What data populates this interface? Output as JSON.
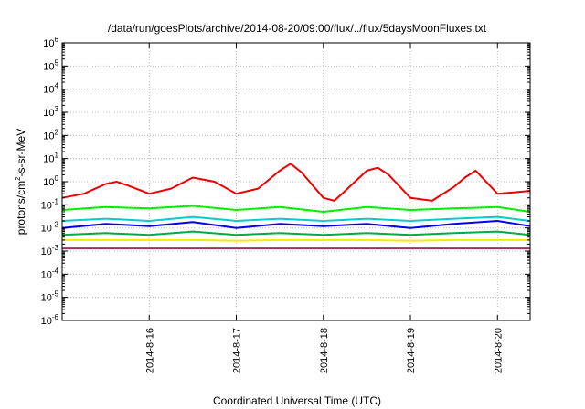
{
  "chart_data": {
    "type": "line",
    "title": "/data/run/goesPlots/archive/2014-08-20/09:00/flux/../flux/5daysMoonFluxes.txt",
    "xlabel": "Coordinated Universal Time (UTC)",
    "ylabel": "protons/cm2-s-sr-MeV",
    "ylabel_parts": {
      "pre": "protons/cm",
      "sup": "2",
      "post": "-s-sr-MeV"
    },
    "yscale": "log",
    "ylim": [
      1e-06,
      1000000.0
    ],
    "xlim": [
      "2014-08-15 00:00",
      "2014-08-20 09:00"
    ],
    "y_ticks": [
      {
        "base": "10",
        "exp": "6"
      },
      {
        "base": "10",
        "exp": "5"
      },
      {
        "base": "10",
        "exp": "4"
      },
      {
        "base": "10",
        "exp": "3"
      },
      {
        "base": "10",
        "exp": "2"
      },
      {
        "base": "10",
        "exp": "1"
      },
      {
        "base": "10",
        "exp": "0"
      },
      {
        "base": "10",
        "exp": "-1"
      },
      {
        "base": "10",
        "exp": "-2"
      },
      {
        "base": "10",
        "exp": "-3"
      },
      {
        "base": "10",
        "exp": "-4"
      },
      {
        "base": "10",
        "exp": "-5"
      },
      {
        "base": "10",
        "exp": "-6"
      }
    ],
    "x_ticks": [
      "2014-8-16",
      "2014-8-17",
      "2014-8-18",
      "2014-8-19",
      "2014-8-20"
    ],
    "grid": true,
    "legend": "none",
    "series": [
      {
        "color": "#ee0000",
        "x": [
          "2014-08-15 00:00",
          "2014-08-15 06:00",
          "2014-08-15 12:00",
          "2014-08-15 15:00",
          "2014-08-15 18:00",
          "2014-08-16 00:00",
          "2014-08-16 06:00",
          "2014-08-16 12:00",
          "2014-08-16 18:00",
          "2014-08-17 00:00",
          "2014-08-17 06:00",
          "2014-08-17 12:00",
          "2014-08-17 15:00",
          "2014-08-17 18:00",
          "2014-08-18 00:00",
          "2014-08-18 03:00",
          "2014-08-18 06:00",
          "2014-08-18 12:00",
          "2014-08-18 15:00",
          "2014-08-18 18:00",
          "2014-08-19 00:00",
          "2014-08-19 06:00",
          "2014-08-19 12:00",
          "2014-08-19 15:00",
          "2014-08-19 18:00",
          "2014-08-20 00:00",
          "2014-08-20 09:00"
        ],
        "y": [
          0.2,
          0.3,
          0.8,
          1.0,
          0.7,
          0.3,
          0.5,
          1.5,
          1.0,
          0.3,
          0.5,
          3.0,
          6.0,
          2.5,
          0.2,
          0.15,
          0.4,
          3.0,
          4.0,
          2.0,
          0.2,
          0.15,
          0.6,
          1.5,
          3.0,
          0.3,
          0.4
        ]
      },
      {
        "color": "#00ee00",
        "x": [
          "2014-08-15 00:00",
          "2014-08-15 12:00",
          "2014-08-16 00:00",
          "2014-08-16 12:00",
          "2014-08-17 00:00",
          "2014-08-17 12:00",
          "2014-08-18 00:00",
          "2014-08-18 12:00",
          "2014-08-19 00:00",
          "2014-08-19 12:00",
          "2014-08-20 00:00",
          "2014-08-20 09:00"
        ],
        "y": [
          0.06,
          0.08,
          0.07,
          0.09,
          0.06,
          0.08,
          0.05,
          0.08,
          0.06,
          0.07,
          0.08,
          0.05
        ]
      },
      {
        "color": "#00cccc",
        "x": [
          "2014-08-15 00:00",
          "2014-08-15 12:00",
          "2014-08-16 00:00",
          "2014-08-16 12:00",
          "2014-08-17 00:00",
          "2014-08-17 12:00",
          "2014-08-18 00:00",
          "2014-08-18 12:00",
          "2014-08-19 00:00",
          "2014-08-19 12:00",
          "2014-08-20 00:00",
          "2014-08-20 09:00"
        ],
        "y": [
          0.02,
          0.025,
          0.02,
          0.03,
          0.02,
          0.025,
          0.02,
          0.025,
          0.02,
          0.025,
          0.03,
          0.02
        ]
      },
      {
        "color": "#0000ee",
        "x": [
          "2014-08-15 00:00",
          "2014-08-15 12:00",
          "2014-08-16 00:00",
          "2014-08-16 12:00",
          "2014-08-17 00:00",
          "2014-08-17 12:00",
          "2014-08-18 00:00",
          "2014-08-18 12:00",
          "2014-08-19 00:00",
          "2014-08-19 12:00",
          "2014-08-20 00:00",
          "2014-08-20 09:00"
        ],
        "y": [
          0.01,
          0.015,
          0.012,
          0.018,
          0.01,
          0.015,
          0.012,
          0.015,
          0.01,
          0.015,
          0.02,
          0.012
        ]
      },
      {
        "color": "#00aa44",
        "x": [
          "2014-08-15 00:00",
          "2014-08-15 12:00",
          "2014-08-16 00:00",
          "2014-08-16 12:00",
          "2014-08-17 00:00",
          "2014-08-17 12:00",
          "2014-08-18 00:00",
          "2014-08-18 12:00",
          "2014-08-19 00:00",
          "2014-08-19 12:00",
          "2014-08-20 00:00",
          "2014-08-20 09:00"
        ],
        "y": [
          0.005,
          0.006,
          0.005,
          0.007,
          0.005,
          0.006,
          0.005,
          0.006,
          0.005,
          0.006,
          0.007,
          0.005
        ]
      },
      {
        "color": "#eeee00",
        "x": [
          "2014-08-15 00:00",
          "2014-08-15 12:00",
          "2014-08-16 00:00",
          "2014-08-16 12:00",
          "2014-08-17 00:00",
          "2014-08-17 12:00",
          "2014-08-18 00:00",
          "2014-08-18 12:00",
          "2014-08-19 00:00",
          "2014-08-19 12:00",
          "2014-08-20 00:00",
          "2014-08-20 09:00"
        ],
        "y": [
          0.003,
          0.003,
          0.003,
          0.003,
          0.0028,
          0.003,
          0.003,
          0.003,
          0.0028,
          0.003,
          0.003,
          0.003
        ]
      },
      {
        "color": "#993366",
        "x": [
          "2014-08-15 00:00",
          "2014-08-15 12:00",
          "2014-08-16 00:00",
          "2014-08-16 12:00",
          "2014-08-17 00:00",
          "2014-08-17 12:00",
          "2014-08-18 00:00",
          "2014-08-18 12:00",
          "2014-08-19 00:00",
          "2014-08-19 12:00",
          "2014-08-20 00:00",
          "2014-08-20 09:00"
        ],
        "y": [
          0.0013,
          0.0013,
          0.0013,
          0.0013,
          0.0013,
          0.0013,
          0.0013,
          0.0013,
          0.0013,
          0.0013,
          0.0013,
          0.0013
        ]
      }
    ]
  }
}
